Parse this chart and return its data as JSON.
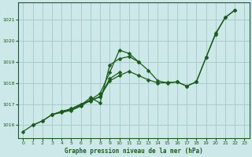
{
  "background_color": "#cce8e8",
  "grid_color": "#aacccc",
  "line_color": "#1a5c1a",
  "title": "Graphe pression niveau de la mer (hPa)",
  "xlim": [
    -0.5,
    23.5
  ],
  "ylim": [
    1015.4,
    1021.8
  ],
  "yticks": [
    1016,
    1017,
    1018,
    1019,
    1020,
    1021
  ],
  "xticks": [
    0,
    1,
    2,
    3,
    4,
    5,
    6,
    7,
    8,
    9,
    10,
    11,
    12,
    13,
    14,
    15,
    16,
    17,
    18,
    19,
    20,
    21,
    22,
    23
  ],
  "series": [
    {
      "x": [
        0,
        1,
        2,
        3,
        4,
        5,
        6,
        7,
        8,
        9,
        10,
        11,
        12,
        13,
        14,
        15,
        16,
        17,
        18,
        19,
        20,
        21,
        22
      ],
      "y": [
        1015.7,
        1016.0,
        1016.2,
        1016.5,
        1016.6,
        1016.7,
        1016.9,
        1017.2,
        1017.5,
        1018.5,
        1019.55,
        1019.4,
        1019.0,
        1018.6,
        1018.1,
        1018.0,
        1018.05,
        1017.85,
        1018.05,
        1019.2,
        1020.3,
        1021.1,
        1021.45
      ]
    },
    {
      "x": [
        1,
        2,
        3,
        4,
        5,
        6,
        7,
        8,
        9,
        10,
        11,
        12
      ],
      "y": [
        1016.0,
        1016.2,
        1016.5,
        1016.65,
        1016.75,
        1016.95,
        1017.3,
        1017.05,
        1018.85,
        1019.15,
        1019.25,
        1019.0
      ]
    },
    {
      "x": [
        3,
        4,
        5,
        6,
        7,
        8,
        9,
        10
      ],
      "y": [
        1016.5,
        1016.65,
        1016.75,
        1016.95,
        1017.15,
        1017.35,
        1018.2,
        1018.5
      ]
    },
    {
      "x": [
        4,
        5,
        6,
        7,
        8,
        9,
        10,
        11,
        12,
        13,
        14,
        15,
        16,
        17,
        18,
        19,
        20,
        21,
        22
      ],
      "y": [
        1016.65,
        1016.78,
        1017.0,
        1017.18,
        1017.35,
        1018.1,
        1018.35,
        1018.55,
        1018.35,
        1018.15,
        1018.0,
        1018.02,
        1018.05,
        1017.85,
        1018.05,
        1019.2,
        1020.35,
        1021.1,
        1021.45
      ]
    }
  ]
}
